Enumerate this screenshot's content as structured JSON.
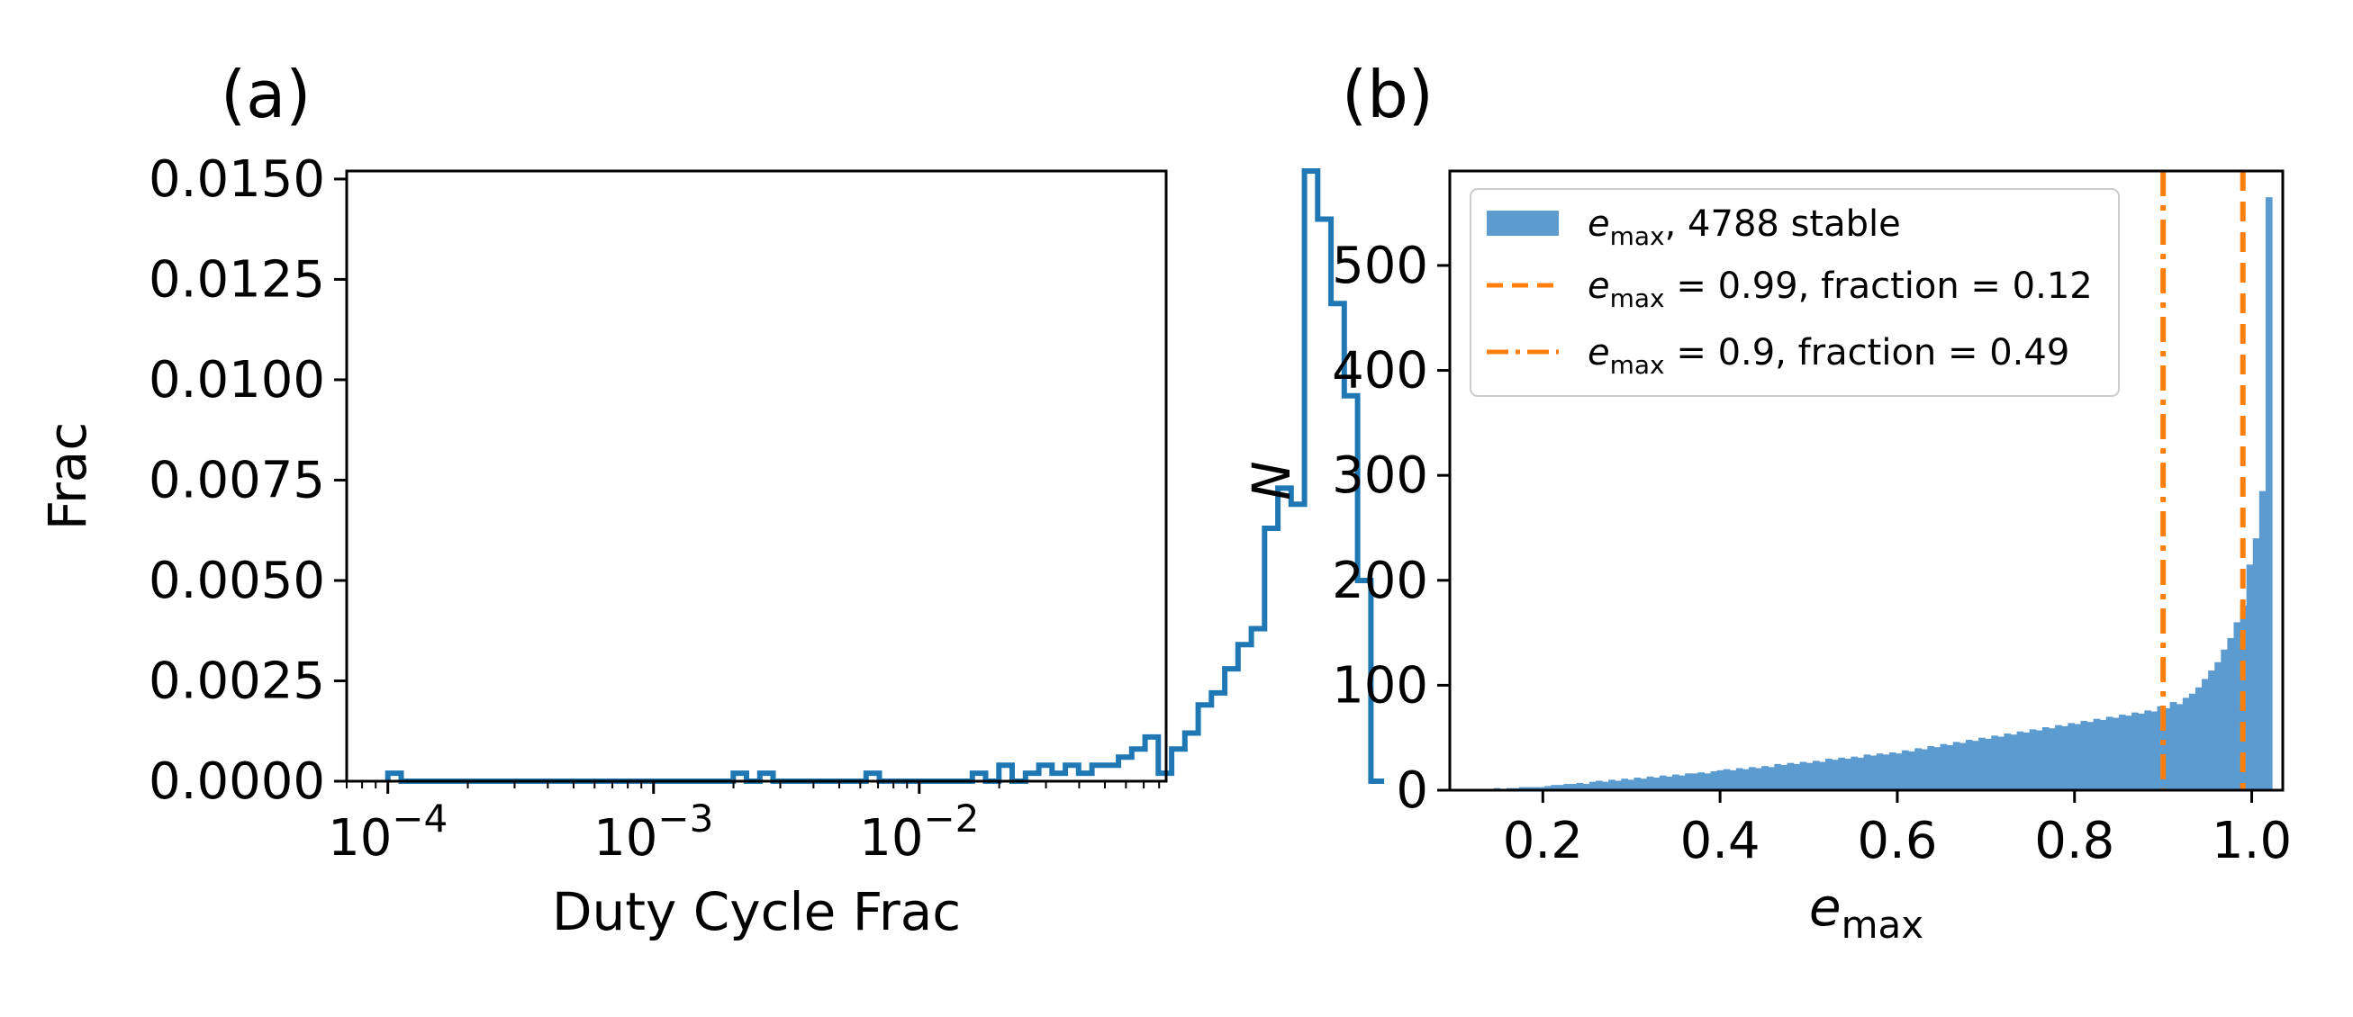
{
  "panels": {
    "a_label": "(a)",
    "b_label": "(b)"
  },
  "chart_data": [
    {
      "type": "step-histogram",
      "panel": "(a)",
      "title": "",
      "xlabel": "Duty Cycle Frac",
      "ylabel": "Frac",
      "xscale": "log",
      "xlim": [
        7e-05,
        0.085
      ],
      "ylim": [
        0.0,
        0.0152
      ],
      "xticks": [
        0.0001,
        0.001,
        0.01
      ],
      "xtick_labels": [
        {
          "base": "10",
          "exp": "−4"
        },
        {
          "base": "10",
          "exp": "−3"
        },
        {
          "base": "10",
          "exp": "−2"
        }
      ],
      "yticks": [
        0.0,
        0.0025,
        0.005,
        0.0075,
        0.01,
        0.0125,
        0.015
      ],
      "ytick_labels": [
        "0.0000",
        "0.0025",
        "0.0050",
        "0.0075",
        "0.0100",
        "0.0125",
        "0.0150"
      ],
      "color": "#1f77b4",
      "bins": {
        "log_start": -4.0,
        "log_width": 0.05,
        "values": [
          0.0002,
          0,
          0,
          0,
          0,
          0,
          0,
          0,
          0,
          0,
          0,
          0,
          0,
          0,
          0,
          0,
          0,
          0,
          0,
          0,
          0,
          0,
          0,
          0,
          0,
          0,
          0.0002,
          0,
          0.0002,
          0,
          0,
          0,
          0,
          0,
          0,
          0,
          0.0002,
          0,
          0,
          0,
          0,
          0,
          0,
          0,
          0.0002,
          0,
          0.0004,
          0,
          0.0002,
          0.0004,
          0.0002,
          0.0004,
          0.0002,
          0.0004,
          0.0004,
          0.0006,
          0.0008,
          0.0011,
          0.0002,
          0.0008,
          0.0012,
          0.0019,
          0.0022,
          0.0028,
          0.0034,
          0.0038,
          0.0063,
          0.0073,
          0.0069,
          0.0152,
          0.014,
          0.0119,
          0.0096,
          0.005,
          0
        ]
      }
    },
    {
      "type": "histogram",
      "panel": "(b)",
      "title": "",
      "xlabel": "e_max",
      "ylabel": "N",
      "xlim": [
        0.095,
        1.035
      ],
      "ylim": [
        0,
        590
      ],
      "xticks": [
        0.2,
        0.4,
        0.6,
        0.8,
        1.0
      ],
      "xtick_labels": [
        "0.2",
        "0.4",
        "0.6",
        "0.8",
        "1.0"
      ],
      "yticks": [
        0,
        100,
        200,
        300,
        400,
        500
      ],
      "ytick_labels": [
        "0",
        "100",
        "200",
        "300",
        "400",
        "500"
      ],
      "bar_color": "#5b9bd0",
      "line_color": "#ff7f0e",
      "bins": {
        "start": 0.13,
        "width": 0.0072,
        "values": [
          1,
          1,
          2,
          1,
          2,
          2,
          3,
          3,
          3,
          3,
          4,
          5,
          5,
          6,
          6,
          7,
          6,
          8,
          9,
          8,
          10,
          9,
          11,
          10,
          12,
          11,
          13,
          12,
          14,
          13,
          15,
          14,
          16,
          16,
          17,
          16,
          18,
          19,
          20,
          19,
          21,
          20,
          22,
          21,
          23,
          22,
          25,
          24,
          26,
          25,
          27,
          26,
          28,
          27,
          30,
          29,
          31,
          30,
          32,
          31,
          34,
          33,
          35,
          34,
          36,
          35,
          38,
          37,
          40,
          39,
          42,
          41,
          44,
          43,
          46,
          45,
          48,
          47,
          50,
          49,
          52,
          51,
          54,
          53,
          56,
          55,
          58,
          57,
          60,
          59,
          62,
          61,
          64,
          63,
          66,
          65,
          68,
          67,
          70,
          69,
          72,
          71,
          74,
          73,
          76,
          75,
          80,
          78,
          84,
          82,
          88,
          92,
          98,
          106,
          114,
          122,
          134,
          145,
          160,
          176,
          215,
          240,
          285,
          565
        ]
      },
      "vlines": [
        {
          "x": 0.9,
          "style": "dashdot"
        },
        {
          "x": 0.99,
          "style": "dashed"
        }
      ],
      "legend": {
        "placement": "top-left",
        "entries": [
          {
            "symbol": "e",
            "subscript": "max",
            "text": ", 4788 stable"
          },
          {
            "symbol": "e",
            "subscript": "max",
            "text": " = 0.99, fraction = 0.12"
          },
          {
            "symbol": "e",
            "subscript": "max",
            "text": " = 0.9, fraction = 0.49"
          }
        ]
      }
    }
  ]
}
